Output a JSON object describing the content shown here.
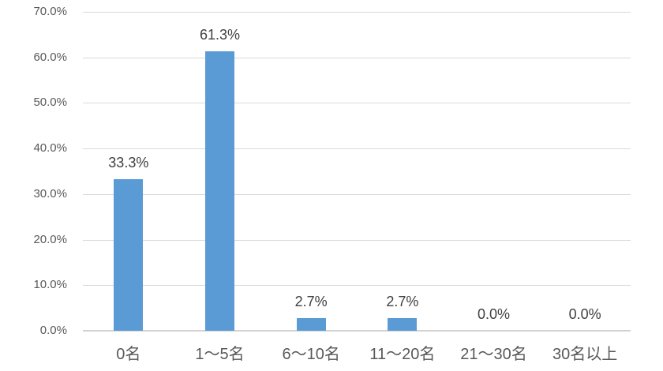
{
  "chart_data": {
    "type": "bar",
    "title": "",
    "xlabel": "",
    "ylabel": "",
    "categories": [
      "0名",
      "1〜5名",
      "6〜10名",
      "11〜20名",
      "21〜30名",
      "30名以上"
    ],
    "values": [
      33.3,
      61.3,
      2.7,
      2.7,
      0.0,
      0.0
    ],
    "data_labels": [
      "33.3%",
      "61.3%",
      "2.7%",
      "2.7%",
      "0.0%",
      "0.0%"
    ],
    "ylim": [
      0,
      70
    ],
    "ytick_interval": 10,
    "ytick_labels": [
      "0.0%",
      "10.0%",
      "20.0%",
      "30.0%",
      "40.0%",
      "50.0%",
      "60.0%",
      "70.0%"
    ],
    "grid": true,
    "legend": false,
    "colors": {
      "bar": "#5B9BD5",
      "gridline": "#D9D9D9",
      "axis_line": "#D2D2D2",
      "axis_text": "#595959",
      "data_label_text": "#404040",
      "background": "#FFFFFF"
    }
  }
}
